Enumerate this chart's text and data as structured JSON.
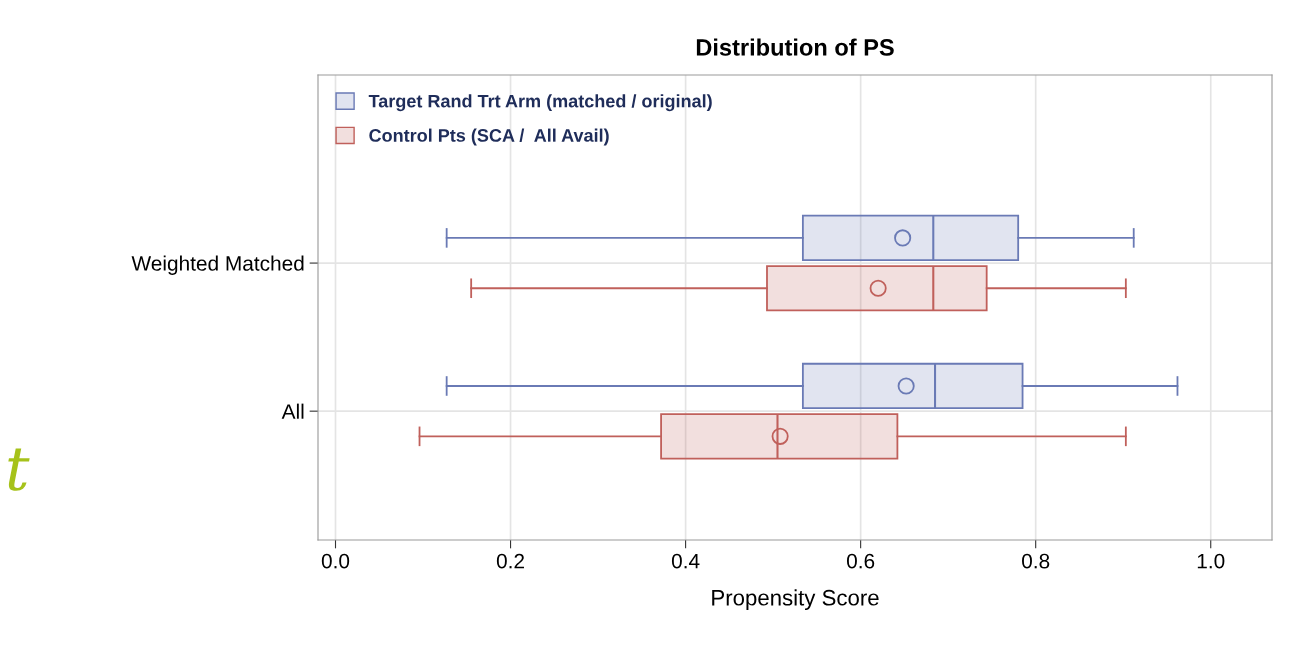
{
  "chart_data": {
    "type": "box",
    "title": "Distribution of PS",
    "xlabel": "Propensity Score",
    "categories": [
      "Weighted Matched",
      "All"
    ],
    "orientation": "horizontal",
    "series": [
      {
        "name": "Target Rand Trt Arm (matched / original)",
        "color": "#6a7ab5",
        "boxes": [
          {
            "low": 0.127,
            "q1": 0.534,
            "median": 0.683,
            "q3": 0.78,
            "high": 0.912,
            "mean": 0.648
          },
          {
            "low": 0.127,
            "q1": 0.534,
            "median": 0.685,
            "q3": 0.785,
            "high": 0.962,
            "mean": 0.652
          }
        ]
      },
      {
        "name": "Control Pts (SCA /  All Avail)",
        "color": "#c0605b",
        "boxes": [
          {
            "low": 0.155,
            "q1": 0.493,
            "median": 0.683,
            "q3": 0.744,
            "high": 0.903,
            "mean": 0.62
          },
          {
            "low": 0.096,
            "q1": 0.372,
            "median": 0.505,
            "q3": 0.642,
            "high": 0.903,
            "mean": 0.508
          }
        ]
      }
    ],
    "xlim": [
      -0.02,
      1.07
    ],
    "xticks": [
      {
        "value": 0,
        "label": "0.0"
      },
      {
        "value": 0.2,
        "label": "0.2"
      },
      {
        "value": 0.4,
        "label": "0.4"
      },
      {
        "value": 0.6,
        "label": "0.6"
      },
      {
        "value": 0.8,
        "label": "0.8"
      },
      {
        "value": 1.0,
        "label": "1.0"
      }
    ],
    "grid": true,
    "legend": "top left",
    "marker": "circle",
    "annotations": [
      "t"
    ]
  }
}
